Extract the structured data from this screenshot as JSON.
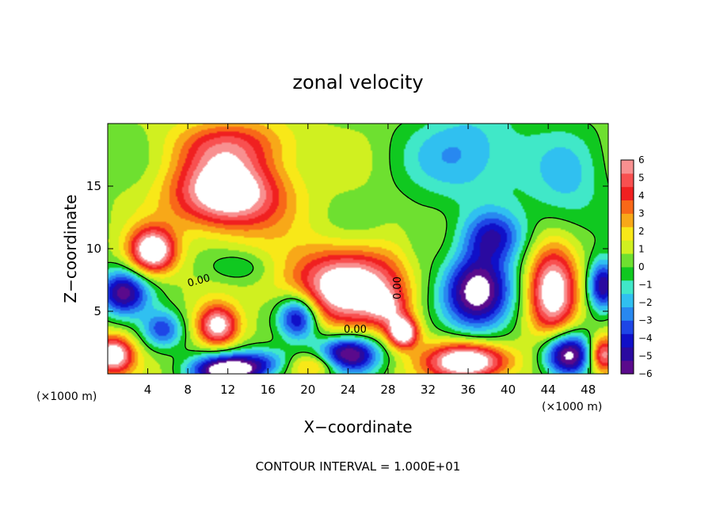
{
  "chart_data": {
    "type": "heatmap",
    "title": "zonal velocity",
    "xlabel": "X−coordinate",
    "ylabel": "Z−coordinate",
    "x_unit": "(×1000 m)",
    "y_unit": "(×1000 m)",
    "xlim": [
      0,
      50
    ],
    "ylim": [
      0,
      20
    ],
    "x_ticks": [
      4,
      8,
      12,
      16,
      20,
      24,
      28,
      32,
      36,
      40,
      44,
      48
    ],
    "x_tick_labels": [
      "4",
      "8",
      "12",
      "16",
      "20",
      "24",
      "28",
      "32",
      "36",
      "40",
      "44",
      "48"
    ],
    "y_ticks": [
      5,
      10,
      15
    ],
    "y_tick_labels": [
      "5",
      "10",
      "15"
    ],
    "colorbar": {
      "min": -6,
      "max": 6,
      "ticks": [
        "6",
        "5",
        "4",
        "3",
        "2",
        "1",
        "0",
        "−1",
        "−2",
        "−3",
        "−4",
        "−5",
        "−6"
      ],
      "colors": [
        "#5a0a8c",
        "#2a0aa0",
        "#1010c8",
        "#1e46e6",
        "#2888f0",
        "#30c0f0",
        "#40e8c8",
        "#10c820",
        "#6ee030",
        "#d0f020",
        "#f8e818",
        "#f8a818",
        "#f86818",
        "#f02020",
        "#f85050",
        "#f89090"
      ]
    },
    "contour_label": "0.00",
    "annotation": "CONTOUR INTERVAL = 1.000E+01",
    "field": {
      "background": 0.6,
      "features": [
        {
          "x": 12,
          "z": 14.5,
          "rx": 5.5,
          "rz": 3,
          "v": 7.5
        },
        {
          "x": 12.5,
          "z": 18.5,
          "rx": 6,
          "rz": 2,
          "v": 3
        },
        {
          "x": 4.5,
          "z": 9.8,
          "rx": 2.3,
          "rz": 1.8,
          "v": 7
        },
        {
          "x": 24,
          "z": 7.0,
          "rx": 6,
          "rz": 3,
          "v": 7
        },
        {
          "x": 28,
          "z": 5.2,
          "rx": 2,
          "rz": 1.5,
          "v": 3
        },
        {
          "x": 37,
          "z": 6.5,
          "rx": 3.5,
          "rz": 3,
          "v": -8
        },
        {
          "x": 38.5,
          "z": 11,
          "rx": 3,
          "rz": 2,
          "v": -4
        },
        {
          "x": 36,
          "z": 17.5,
          "rx": 6,
          "rz": 4,
          "v": -3
        },
        {
          "x": 46,
          "z": 15,
          "rx": 4,
          "rz": 5,
          "v": -2
        },
        {
          "x": 44.5,
          "z": 6.5,
          "rx": 2.5,
          "rz": 3.5,
          "v": 7.5
        },
        {
          "x": 1.5,
          "z": 6.5,
          "rx": 2.5,
          "rz": 1.8,
          "v": -6
        },
        {
          "x": 0.5,
          "z": 1.5,
          "rx": 2,
          "rz": 1.5,
          "v": 7
        },
        {
          "x": 5.5,
          "z": 3.5,
          "rx": 2,
          "rz": 1.5,
          "v": -4
        },
        {
          "x": 11,
          "z": 3.8,
          "rx": 2,
          "rz": 1.6,
          "v": 6
        },
        {
          "x": 12,
          "z": 0.3,
          "rx": 3.5,
          "rz": 1.2,
          "v": -8
        },
        {
          "x": 19,
          "z": 4.5,
          "rx": 2,
          "rz": 1.8,
          "v": -6
        },
        {
          "x": 16,
          "z": 1,
          "rx": 3,
          "rz": 1.2,
          "v": -3
        },
        {
          "x": 21,
          "z": 0.7,
          "rx": 3,
          "rz": 1,
          "v": 3
        },
        {
          "x": 24,
          "z": 1.5,
          "rx": 3,
          "rz": 1.5,
          "v": -7
        },
        {
          "x": 29.5,
          "z": 3.3,
          "rx": 1.5,
          "rz": 1.2,
          "v": 7
        },
        {
          "x": 36,
          "z": 1,
          "rx": 4,
          "rz": 1.5,
          "v": 8
        },
        {
          "x": 46,
          "z": 1.5,
          "rx": 2.5,
          "rz": 1.8,
          "v": -8
        },
        {
          "x": 49.5,
          "z": 1.5,
          "rx": 1.5,
          "rz": 1.5,
          "v": 6
        },
        {
          "x": 49.5,
          "z": 7,
          "rx": 1.5,
          "rz": 2,
          "v": -6
        },
        {
          "x": 13,
          "z": 8.5,
          "rx": 3,
          "rz": 1.2,
          "v": -1.5
        },
        {
          "x": 31,
          "z": 10,
          "rx": 2,
          "rz": 3,
          "v": -1
        }
      ]
    }
  }
}
